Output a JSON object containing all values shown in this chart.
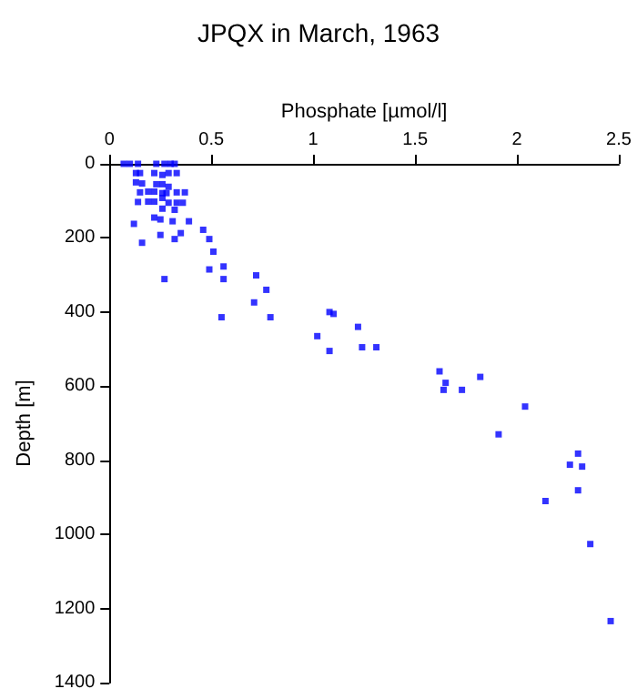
{
  "chart_data": {
    "type": "scatter",
    "title": "JPQX in March, 1963",
    "xlabel": "Phosphate [µmol/l]",
    "ylabel": "Depth [m]",
    "x": [
      0.07,
      0.1,
      0.14,
      0.23,
      0.27,
      0.3,
      0.32,
      0.13,
      0.15,
      0.22,
      0.26,
      0.29,
      0.33,
      0.13,
      0.16,
      0.23,
      0.26,
      0.29,
      0.15,
      0.19,
      0.22,
      0.26,
      0.28,
      0.33,
      0.37,
      0.26,
      0.14,
      0.19,
      0.22,
      0.29,
      0.33,
      0.36,
      0.26,
      0.32,
      0.22,
      0.25,
      0.31,
      0.39,
      0.12,
      0.46,
      0.35,
      0.25,
      0.49,
      0.32,
      0.16,
      0.51,
      0.56,
      0.49,
      0.27,
      0.56,
      0.72,
      0.77,
      0.71,
      0.79,
      0.55,
      1.08,
      1.1,
      1.02,
      1.08,
      1.22,
      1.24,
      1.31,
      1.62,
      1.65,
      1.64,
      1.73,
      1.82,
      2.04,
      1.91,
      2.14,
      2.26,
      2.3,
      2.32,
      2.3,
      2.36,
      2.46
    ],
    "values": [
      0,
      0,
      0,
      0,
      0,
      0,
      0,
      25,
      25,
      25,
      30,
      25,
      25,
      50,
      53,
      55,
      55,
      62,
      77,
      75,
      75,
      79,
      79,
      77,
      77,
      92,
      103,
      102,
      102,
      105,
      105,
      105,
      121,
      124,
      145,
      150,
      155,
      155,
      162,
      178,
      187,
      192,
      203,
      203,
      213,
      237,
      277,
      285,
      311,
      311,
      301,
      340,
      374,
      414,
      414,
      400,
      405,
      465,
      505,
      440,
      495,
      495,
      560,
      591,
      610,
      610,
      575,
      655,
      730,
      910,
      812,
      782,
      817,
      881,
      1026,
      1234
    ],
    "color": "#0000ff",
    "marker": "square",
    "grid": false,
    "xlim": [
      0,
      2.5
    ],
    "xticks": [
      0,
      0.5,
      1,
      1.5,
      2,
      2.5
    ],
    "ylim": [
      1400,
      0
    ],
    "yticks": [
      0,
      200,
      400,
      600,
      800,
      1000,
      1200,
      1400
    ]
  }
}
